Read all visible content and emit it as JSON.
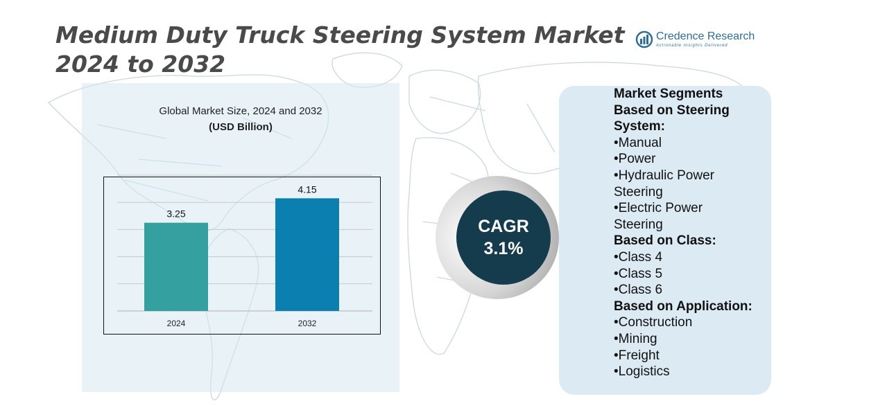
{
  "page": {
    "title": "Medium Duty Truck Steering System Market 2024 to 2032"
  },
  "logo": {
    "brand": "Credence Research",
    "tagline": "Actionable Insights Delivered",
    "icon": "bar-chart-logo-icon",
    "color": "#2a6e9e"
  },
  "chart_title": {
    "line1": "Global Market Size, 2024 and 2032",
    "line2": "(USD Billion)"
  },
  "chart_data": {
    "type": "bar",
    "title": "Global Market Size, 2024 and 2032",
    "subtitle": "(USD Billion)",
    "categories": [
      "2024",
      "2032"
    ],
    "values": [
      3.25,
      4.15
    ],
    "data_labels": [
      "3.25",
      "4.15"
    ],
    "colors": [
      "#35a0a0",
      "#0a7fb0"
    ],
    "ylim": [
      0,
      5
    ],
    "grid": true,
    "xlabel": "",
    "ylabel": ""
  },
  "cagr": {
    "label": "CAGR",
    "value": "3.1%",
    "color": "#143c4d"
  },
  "segments": {
    "lines": [
      {
        "text": "Market Segments",
        "bold": true
      },
      {
        "text": "Based on Steering",
        "bold": true
      },
      {
        "text": "System:",
        "bold": true
      },
      {
        "text": "•Manual",
        "bold": false
      },
      {
        "text": "•Power",
        "bold": false
      },
      {
        "text": "•Hydraulic Power",
        "bold": false
      },
      {
        "text": "Steering",
        "bold": false
      },
      {
        "text": "•Electric Power",
        "bold": false
      },
      {
        "text": "Steering",
        "bold": false
      },
      {
        "text": "Based on Class:",
        "bold": true
      },
      {
        "text": "•Class 4",
        "bold": false
      },
      {
        "text": "•Class 5",
        "bold": false
      },
      {
        "text": "•Class 6",
        "bold": false
      },
      {
        "text": "Based on Application:",
        "bold": true
      },
      {
        "text": "•Construction",
        "bold": false
      },
      {
        "text": "•Mining",
        "bold": false
      },
      {
        "text": "•Freight",
        "bold": false
      },
      {
        "text": "•Logistics",
        "bold": false
      }
    ]
  }
}
